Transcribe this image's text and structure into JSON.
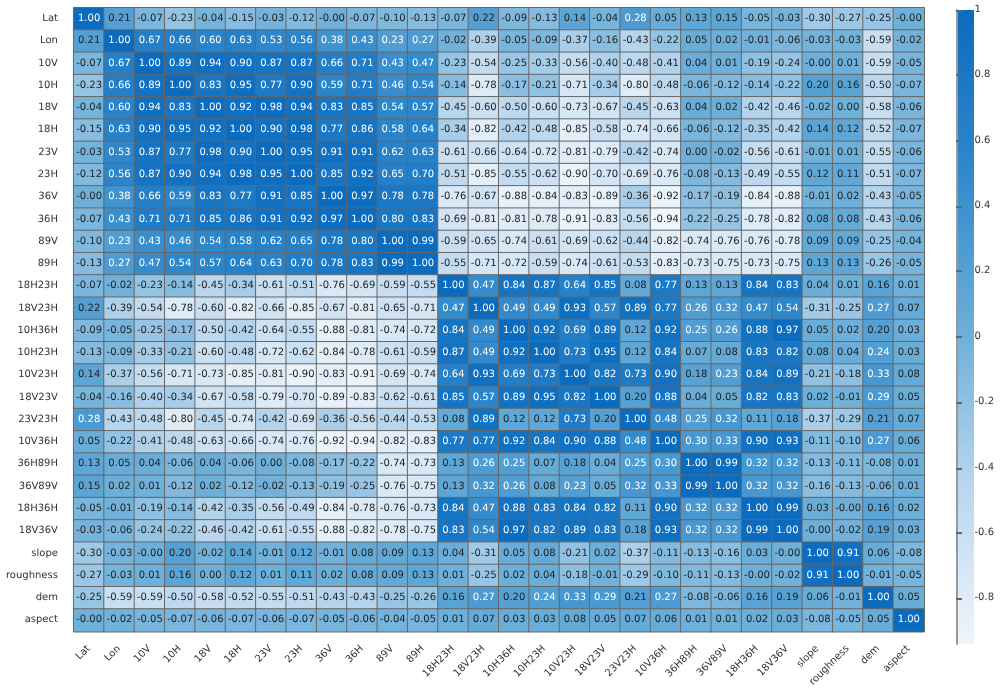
{
  "chart_data": {
    "type": "heatmap",
    "categories": [
      "Lat",
      "Lon",
      "10V",
      "10H",
      "18V",
      "18H",
      "23V",
      "23H",
      "36V",
      "36H",
      "89V",
      "89H",
      "18H23H",
      "18V23H",
      "10H36H",
      "10H23H",
      "10V23H",
      "18V23V",
      "23V23H",
      "10V36H",
      "36H89H",
      "36V89V",
      "18H36H",
      "18V36V",
      "slope",
      "roughness",
      "dem",
      "aspect"
    ],
    "y_categories": [
      "Lat",
      "Lon",
      "10V",
      "10H",
      "18V",
      "18H",
      "23V",
      "23H",
      "36V",
      "36H",
      "89V",
      "89H",
      "18H23H",
      "18V23H",
      "10H36H",
      "10H23H",
      "10V23H",
      "18V23V",
      "23V23H",
      "10V36H",
      "36H89H",
      "36V89V",
      "18H36H",
      "18V36V",
      "slope",
      "roughness",
      "dem",
      "aspect"
    ],
    "cells": [
      [
        1.0,
        0.21,
        -0.07,
        -0.23,
        -0.04,
        -0.15,
        -0.03,
        -0.12,
        -0.0,
        -0.07,
        -0.1,
        -0.13,
        -0.07,
        0.22,
        -0.09,
        -0.13,
        0.14,
        -0.04,
        0.28,
        0.05,
        0.13,
        0.15,
        -0.05,
        -0.03,
        -0.3,
        -0.27,
        -0.25,
        -0.0
      ],
      [
        0.21,
        1.0,
        0.67,
        0.66,
        0.6,
        0.63,
        0.53,
        0.56,
        0.38,
        0.43,
        0.23,
        0.27,
        -0.02,
        -0.39,
        -0.05,
        -0.09,
        -0.37,
        -0.16,
        -0.43,
        -0.22,
        0.05,
        0.02,
        -0.01,
        -0.06,
        -0.03,
        -0.03,
        -0.59,
        -0.02
      ],
      [
        -0.07,
        0.67,
        1.0,
        0.89,
        0.94,
        0.9,
        0.87,
        0.87,
        0.66,
        0.71,
        0.43,
        0.47,
        -0.23,
        -0.54,
        -0.25,
        -0.33,
        -0.56,
        -0.4,
        -0.48,
        -0.41,
        0.04,
        0.01,
        -0.19,
        -0.24,
        -0.0,
        0.01,
        -0.59,
        -0.05
      ],
      [
        -0.23,
        0.66,
        0.89,
        1.0,
        0.83,
        0.95,
        0.77,
        0.9,
        0.59,
        0.71,
        0.46,
        0.54,
        -0.14,
        -0.78,
        -0.17,
        -0.21,
        -0.71,
        -0.34,
        -0.8,
        -0.48,
        -0.06,
        -0.12,
        -0.14,
        -0.22,
        0.2,
        0.16,
        -0.5,
        -0.07
      ],
      [
        -0.04,
        0.6,
        0.94,
        0.83,
        1.0,
        0.92,
        0.98,
        0.94,
        0.83,
        0.85,
        0.54,
        0.57,
        -0.45,
        -0.6,
        -0.5,
        -0.6,
        -0.73,
        -0.67,
        -0.45,
        -0.63,
        0.04,
        0.02,
        -0.42,
        -0.46,
        -0.02,
        0.0,
        -0.58,
        -0.06
      ],
      [
        -0.15,
        0.63,
        0.9,
        0.95,
        0.92,
        1.0,
        0.9,
        0.98,
        0.77,
        0.86,
        0.58,
        0.64,
        -0.34,
        -0.82,
        -0.42,
        -0.48,
        -0.85,
        -0.58,
        -0.74,
        -0.66,
        -0.06,
        -0.12,
        -0.35,
        -0.42,
        0.14,
        0.12,
        -0.52,
        -0.07
      ],
      [
        -0.03,
        0.53,
        0.87,
        0.77,
        0.98,
        0.9,
        1.0,
        0.95,
        0.91,
        0.91,
        0.62,
        0.63,
        -0.61,
        -0.66,
        -0.64,
        -0.72,
        -0.81,
        -0.79,
        -0.42,
        -0.74,
        0.0,
        -0.02,
        -0.56,
        -0.61,
        -0.01,
        0.01,
        -0.55,
        -0.06
      ],
      [
        -0.12,
        0.56,
        0.87,
        0.9,
        0.94,
        0.98,
        0.95,
        1.0,
        0.85,
        0.92,
        0.65,
        0.7,
        -0.51,
        -0.85,
        -0.55,
        -0.62,
        -0.9,
        -0.7,
        -0.69,
        -0.76,
        -0.08,
        -0.13,
        -0.49,
        -0.55,
        0.12,
        0.11,
        -0.51,
        -0.07
      ],
      [
        -0.0,
        0.38,
        0.66,
        0.59,
        0.83,
        0.77,
        0.91,
        0.85,
        1.0,
        0.97,
        0.78,
        0.78,
        -0.76,
        -0.67,
        -0.88,
        -0.84,
        -0.83,
        -0.89,
        -0.36,
        -0.92,
        -0.17,
        -0.19,
        -0.84,
        -0.88,
        -0.01,
        0.02,
        -0.43,
        -0.05
      ],
      [
        -0.07,
        0.43,
        0.71,
        0.71,
        0.85,
        0.86,
        0.91,
        0.92,
        0.97,
        1.0,
        0.8,
        0.83,
        -0.69,
        -0.81,
        -0.81,
        -0.78,
        -0.91,
        -0.83,
        -0.56,
        -0.94,
        -0.22,
        -0.25,
        -0.78,
        -0.82,
        0.08,
        0.08,
        -0.43,
        -0.06
      ],
      [
        -0.1,
        0.23,
        0.43,
        0.46,
        0.54,
        0.58,
        0.62,
        0.65,
        0.78,
        0.8,
        1.0,
        0.99,
        -0.59,
        -0.65,
        -0.74,
        -0.61,
        -0.69,
        -0.62,
        -0.44,
        -0.82,
        -0.74,
        -0.76,
        -0.76,
        -0.78,
        0.09,
        0.09,
        -0.25,
        -0.04
      ],
      [
        -0.13,
        0.27,
        0.47,
        0.54,
        0.57,
        0.64,
        0.63,
        0.7,
        0.78,
        0.83,
        0.99,
        1.0,
        -0.55,
        -0.71,
        -0.72,
        -0.59,
        -0.74,
        -0.61,
        -0.53,
        -0.83,
        -0.73,
        -0.75,
        -0.73,
        -0.75,
        0.13,
        0.13,
        -0.26,
        -0.05
      ],
      [
        -0.07,
        -0.02,
        -0.23,
        -0.14,
        -0.45,
        -0.34,
        -0.61,
        -0.51,
        -0.76,
        -0.69,
        -0.59,
        -0.55,
        1.0,
        0.47,
        0.84,
        0.87,
        0.64,
        0.85,
        0.08,
        0.77,
        0.13,
        0.13,
        0.84,
        0.83,
        0.04,
        0.01,
        0.16,
        0.01
      ],
      [
        0.22,
        -0.39,
        -0.54,
        -0.78,
        -0.6,
        -0.82,
        -0.66,
        -0.85,
        -0.67,
        -0.81,
        -0.65,
        -0.71,
        0.47,
        1.0,
        0.49,
        0.49,
        0.93,
        0.57,
        0.89,
        0.77,
        0.26,
        0.32,
        0.47,
        0.54,
        -0.31,
        -0.25,
        0.27,
        0.07
      ],
      [
        -0.09,
        -0.05,
        -0.25,
        -0.17,
        -0.5,
        -0.42,
        -0.64,
        -0.55,
        -0.88,
        -0.81,
        -0.74,
        -0.72,
        0.84,
        0.49,
        1.0,
        0.92,
        0.69,
        0.89,
        0.12,
        0.92,
        0.25,
        0.26,
        0.88,
        0.97,
        0.05,
        0.02,
        0.2,
        0.03
      ],
      [
        -0.13,
        -0.09,
        -0.33,
        -0.21,
        -0.6,
        -0.48,
        -0.72,
        -0.62,
        -0.84,
        -0.78,
        -0.61,
        -0.59,
        0.87,
        0.49,
        0.92,
        1.0,
        0.73,
        0.95,
        0.12,
        0.84,
        0.07,
        0.08,
        0.83,
        0.82,
        0.08,
        0.04,
        0.24,
        0.03
      ],
      [
        0.14,
        -0.37,
        -0.56,
        -0.71,
        -0.73,
        -0.85,
        -0.81,
        -0.9,
        -0.83,
        -0.91,
        -0.69,
        -0.74,
        0.64,
        0.93,
        0.69,
        0.73,
        1.0,
        0.82,
        0.73,
        0.9,
        0.18,
        0.23,
        0.84,
        0.89,
        -0.21,
        -0.18,
        0.33,
        0.08
      ],
      [
        -0.04,
        -0.16,
        -0.4,
        -0.34,
        -0.67,
        -0.58,
        -0.79,
        -0.7,
        -0.89,
        -0.83,
        -0.62,
        -0.61,
        0.85,
        0.57,
        0.89,
        0.95,
        0.82,
        1.0,
        0.2,
        0.88,
        0.04,
        0.05,
        0.82,
        0.83,
        0.02,
        -0.01,
        0.29,
        0.05
      ],
      [
        0.28,
        -0.43,
        -0.48,
        -0.8,
        -0.45,
        -0.74,
        -0.42,
        -0.69,
        -0.36,
        -0.56,
        -0.44,
        -0.53,
        0.08,
        0.89,
        0.12,
        0.12,
        0.73,
        0.2,
        1.0,
        0.48,
        0.25,
        0.32,
        0.11,
        0.18,
        -0.37,
        -0.29,
        0.21,
        0.07
      ],
      [
        0.05,
        -0.22,
        -0.41,
        -0.48,
        -0.63,
        -0.66,
        -0.74,
        -0.76,
        -0.92,
        -0.94,
        -0.82,
        -0.83,
        0.77,
        0.77,
        0.92,
        0.84,
        0.9,
        0.88,
        0.48,
        1.0,
        0.3,
        0.33,
        0.9,
        0.93,
        -0.11,
        -0.1,
        0.27,
        0.06
      ],
      [
        0.13,
        0.05,
        0.04,
        -0.06,
        0.04,
        -0.06,
        0.0,
        -0.08,
        -0.17,
        -0.22,
        -0.74,
        -0.73,
        0.13,
        0.26,
        0.25,
        0.07,
        0.18,
        0.04,
        0.25,
        0.3,
        1.0,
        0.99,
        0.32,
        0.32,
        -0.13,
        -0.11,
        -0.08,
        0.01
      ],
      [
        0.15,
        0.02,
        0.01,
        -0.12,
        0.02,
        -0.12,
        -0.02,
        -0.13,
        -0.19,
        -0.25,
        -0.76,
        -0.75,
        0.13,
        0.32,
        0.26,
        0.08,
        0.23,
        0.05,
        0.32,
        0.33,
        0.99,
        1.0,
        0.32,
        0.32,
        -0.16,
        -0.13,
        -0.06,
        0.01
      ],
      [
        -0.05,
        -0.01,
        -0.19,
        -0.14,
        -0.42,
        -0.35,
        -0.56,
        -0.49,
        -0.84,
        -0.78,
        -0.76,
        -0.73,
        0.84,
        0.47,
        0.88,
        0.83,
        0.84,
        0.82,
        0.11,
        0.9,
        0.32,
        0.32,
        1.0,
        0.99,
        0.03,
        -0.0,
        0.16,
        0.02
      ],
      [
        -0.03,
        -0.06,
        -0.24,
        -0.22,
        -0.46,
        -0.42,
        -0.61,
        -0.55,
        -0.88,
        -0.82,
        -0.78,
        -0.75,
        0.83,
        0.54,
        0.97,
        0.82,
        0.89,
        0.83,
        0.18,
        0.93,
        0.32,
        0.32,
        0.99,
        1.0,
        -0.0,
        -0.02,
        0.19,
        0.03
      ],
      [
        -0.3,
        -0.03,
        -0.0,
        0.2,
        -0.02,
        0.14,
        -0.01,
        0.12,
        -0.01,
        0.08,
        0.09,
        0.13,
        0.04,
        -0.31,
        0.05,
        0.08,
        -0.21,
        0.02,
        -0.37,
        -0.11,
        -0.13,
        -0.16,
        0.03,
        -0.0,
        1.0,
        0.91,
        0.06,
        -0.08
      ],
      [
        -0.27,
        -0.03,
        0.01,
        0.16,
        0.0,
        0.12,
        0.01,
        0.11,
        0.02,
        0.08,
        0.09,
        0.13,
        0.01,
        -0.25,
        0.02,
        0.04,
        -0.18,
        -0.01,
        -0.29,
        -0.1,
        -0.11,
        -0.13,
        -0.0,
        -0.02,
        0.91,
        1.0,
        -0.01,
        -0.05
      ],
      [
        -0.25,
        -0.59,
        -0.59,
        -0.5,
        -0.58,
        -0.52,
        -0.55,
        -0.51,
        -0.43,
        -0.43,
        -0.25,
        -0.26,
        0.16,
        0.27,
        0.2,
        0.24,
        0.33,
        0.29,
        0.21,
        0.27,
        -0.08,
        -0.06,
        0.16,
        0.19,
        0.06,
        -0.01,
        1.0,
        0.05
      ],
      [
        -0.0,
        -0.02,
        -0.05,
        -0.07,
        -0.06,
        -0.07,
        -0.06,
        -0.07,
        -0.05,
        -0.06,
        -0.04,
        -0.05,
        0.01,
        0.07,
        0.03,
        0.03,
        0.08,
        0.05,
        0.07,
        0.06,
        0.01,
        0.01,
        0.02,
        0.03,
        -0.08,
        -0.05,
        0.05,
        1.0
      ]
    ],
    "cell_labels": [
      [
        "1.00",
        "0.21",
        "-0.07",
        "-0.23",
        "-0.04",
        "-0.15",
        "-0.03",
        "-0.12",
        "-0.00",
        "-0.07",
        "-0.10",
        "-0.13",
        "-0.07",
        "0.22",
        "-0.09",
        "-0.13",
        "0.14",
        "-0.04",
        "0.28",
        "0.05",
        "0.13",
        "0.15",
        "-0.05",
        "-0.03",
        "-0.30",
        "-0.27",
        "-0.25",
        "-0.00"
      ],
      [
        "0.21",
        "1.00",
        "0.67",
        "0.66",
        "0.60",
        "0.63",
        "0.53",
        "0.56",
        "0.38",
        "0.43",
        "0.23",
        "0.27",
        "-0.02",
        "-0.39",
        "-0.05",
        "-0.09",
        "-0.37",
        "-0.16",
        "-0.43",
        "-0.22",
        "0.05",
        "0.02",
        "-0.01",
        "-0.06",
        "-0.03",
        "-0.03",
        "-0.59",
        "-0.02"
      ],
      [
        "-0.07",
        "0.67",
        "1.00",
        "0.89",
        "0.94",
        "0.90",
        "0.87",
        "0.87",
        "0.66",
        "0.71",
        "0.43",
        "0.47",
        "-0.23",
        "-0.54",
        "-0.25",
        "-0.33",
        "-0.56",
        "-0.40",
        "-0.48",
        "-0.41",
        "0.04",
        "0.01",
        "-0.19",
        "-0.24",
        "-0.00",
        "0.01",
        "-0.59",
        "-0.05"
      ],
      [
        "-0.23",
        "0.66",
        "0.89",
        "1.00",
        "0.83",
        "0.95",
        "0.77",
        "0.90",
        "0.59",
        "0.71",
        "0.46",
        "0.54",
        "-0.14",
        "-0.78",
        "-0.17",
        "-0.21",
        "-0.71",
        "-0.34",
        "-0.80",
        "-0.48",
        "-0.06",
        "-0.12",
        "-0.14",
        "-0.22",
        "0.20",
        "0.16",
        "-0.50",
        "-0.07"
      ],
      [
        "-0.04",
        "0.60",
        "0.94",
        "0.83",
        "1.00",
        "0.92",
        "0.98",
        "0.94",
        "0.83",
        "0.85",
        "0.54",
        "0.57",
        "-0.45",
        "-0.60",
        "-0.50",
        "-0.60",
        "-0.73",
        "-0.67",
        "-0.45",
        "-0.63",
        "0.04",
        "0.02",
        "-0.42",
        "-0.46",
        "-0.02",
        "0.00",
        "-0.58",
        "-0.06"
      ],
      [
        "-0.15",
        "0.63",
        "0.90",
        "0.95",
        "0.92",
        "1.00",
        "0.90",
        "0.98",
        "0.77",
        "0.86",
        "0.58",
        "0.64",
        "-0.34",
        "-0.82",
        "-0.42",
        "-0.48",
        "-0.85",
        "-0.58",
        "-0.74",
        "-0.66",
        "-0.06",
        "-0.12",
        "-0.35",
        "-0.42",
        "0.14",
        "0.12",
        "-0.52",
        "-0.07"
      ],
      [
        "-0.03",
        "0.53",
        "0.87",
        "0.77",
        "0.98",
        "0.90",
        "1.00",
        "0.95",
        "0.91",
        "0.91",
        "0.62",
        "0.63",
        "-0.61",
        "-0.66",
        "-0.64",
        "-0.72",
        "-0.81",
        "-0.79",
        "-0.42",
        "-0.74",
        "0.00",
        "-0.02",
        "-0.56",
        "-0.61",
        "-0.01",
        "0.01",
        "-0.55",
        "-0.06"
      ],
      [
        "-0.12",
        "0.56",
        "0.87",
        "0.90",
        "0.94",
        "0.98",
        "0.95",
        "1.00",
        "0.85",
        "0.92",
        "0.65",
        "0.70",
        "-0.51",
        "-0.85",
        "-0.55",
        "-0.62",
        "-0.90",
        "-0.70",
        "-0.69",
        "-0.76",
        "-0.08",
        "-0.13",
        "-0.49",
        "-0.55",
        "0.12",
        "0.11",
        "-0.51",
        "-0.07"
      ],
      [
        "-0.00",
        "0.38",
        "0.66",
        "0.59",
        "0.83",
        "0.77",
        "0.91",
        "0.85",
        "1.00",
        "0.97",
        "0.78",
        "0.78",
        "-0.76",
        "-0.67",
        "-0.88",
        "-0.84",
        "-0.83",
        "-0.89",
        "-0.36",
        "-0.92",
        "-0.17",
        "-0.19",
        "-0.84",
        "-0.88",
        "-0.01",
        "0.02",
        "-0.43",
        "-0.05"
      ],
      [
        "-0.07",
        "0.43",
        "0.71",
        "0.71",
        "0.85",
        "0.86",
        "0.91",
        "0.92",
        "0.97",
        "1.00",
        "0.80",
        "0.83",
        "-0.69",
        "-0.81",
        "-0.81",
        "-0.78",
        "-0.91",
        "-0.83",
        "-0.56",
        "-0.94",
        "-0.22",
        "-0.25",
        "-0.78",
        "-0.82",
        "0.08",
        "0.08",
        "-0.43",
        "-0.06"
      ],
      [
        "-0.10",
        "0.23",
        "0.43",
        "0.46",
        "0.54",
        "0.58",
        "0.62",
        "0.65",
        "0.78",
        "0.80",
        "1.00",
        "0.99",
        "-0.59",
        "-0.65",
        "-0.74",
        "-0.61",
        "-0.69",
        "-0.62",
        "-0.44",
        "-0.82",
        "-0.74",
        "-0.76",
        "-0.76",
        "-0.78",
        "0.09",
        "0.09",
        "-0.25",
        "-0.04"
      ],
      [
        "-0.13",
        "0.27",
        "0.47",
        "0.54",
        "0.57",
        "0.64",
        "0.63",
        "0.70",
        "0.78",
        "0.83",
        "0.99",
        "1.00",
        "-0.55",
        "-0.71",
        "-0.72",
        "-0.59",
        "-0.74",
        "-0.61",
        "-0.53",
        "-0.83",
        "-0.73",
        "-0.75",
        "-0.73",
        "-0.75",
        "0.13",
        "0.13",
        "-0.26",
        "-0.05"
      ],
      [
        "-0.07",
        "-0.02",
        "-0.23",
        "-0.14",
        "-0.45",
        "-0.34",
        "-0.61",
        "-0.51",
        "-0.76",
        "-0.69",
        "-0.59",
        "-0.55",
        "1.00",
        "0.47",
        "0.84",
        "0.87",
        "0.64",
        "0.85",
        "0.08",
        "0.77",
        "0.13",
        "0.13",
        "0.84",
        "0.83",
        "0.04",
        "0.01",
        "0.16",
        "0.01"
      ],
      [
        "0.22",
        "-0.39",
        "-0.54",
        "-0.78",
        "-0.60",
        "-0.82",
        "-0.66",
        "-0.85",
        "-0.67",
        "-0.81",
        "-0.65",
        "-0.71",
        "0.47",
        "1.00",
        "0.49",
        "0.49",
        "0.93",
        "0.57",
        "0.89",
        "0.77",
        "0.26",
        "0.32",
        "0.47",
        "0.54",
        "-0.31",
        "-0.25",
        "0.27",
        "0.07"
      ],
      [
        "-0.09",
        "-0.05",
        "-0.25",
        "-0.17",
        "-0.50",
        "-0.42",
        "-0.64",
        "-0.55",
        "-0.88",
        "-0.81",
        "-0.74",
        "-0.72",
        "0.84",
        "0.49",
        "1.00",
        "0.92",
        "0.69",
        "0.89",
        "0.12",
        "0.92",
        "0.25",
        "0.26",
        "0.88",
        "0.97",
        "0.05",
        "0.02",
        "0.20",
        "0.03"
      ],
      [
        "-0.13",
        "-0.09",
        "-0.33",
        "-0.21",
        "-0.60",
        "-0.48",
        "-0.72",
        "-0.62",
        "-0.84",
        "-0.78",
        "-0.61",
        "-0.59",
        "0.87",
        "0.49",
        "0.92",
        "1.00",
        "0.73",
        "0.95",
        "0.12",
        "0.84",
        "0.07",
        "0.08",
        "0.83",
        "0.82",
        "0.08",
        "0.04",
        "0.24",
        "0.03"
      ],
      [
        "0.14",
        "-0.37",
        "-0.56",
        "-0.71",
        "-0.73",
        "-0.85",
        "-0.81",
        "-0.90",
        "-0.83",
        "-0.91",
        "-0.69",
        "-0.74",
        "0.64",
        "0.93",
        "0.69",
        "0.73",
        "1.00",
        "0.82",
        "0.73",
        "0.90",
        "0.18",
        "0.23",
        "0.84",
        "0.89",
        "-0.21",
        "-0.18",
        "0.33",
        "0.08"
      ],
      [
        "-0.04",
        "-0.16",
        "-0.40",
        "-0.34",
        "-0.67",
        "-0.58",
        "-0.79",
        "-0.70",
        "-0.89",
        "-0.83",
        "-0.62",
        "-0.61",
        "0.85",
        "0.57",
        "0.89",
        "0.95",
        "0.82",
        "1.00",
        "0.20",
        "0.88",
        "0.04",
        "0.05",
        "0.82",
        "0.83",
        "0.02",
        "-0.01",
        "0.29",
        "0.05"
      ],
      [
        "0.28",
        "-0.43",
        "-0.48",
        "-0.80",
        "-0.45",
        "-0.74",
        "-0.42",
        "-0.69",
        "-0.36",
        "-0.56",
        "-0.44",
        "-0.53",
        "0.08",
        "0.89",
        "0.12",
        "0.12",
        "0.73",
        "0.20",
        "1.00",
        "0.48",
        "0.25",
        "0.32",
        "0.11",
        "0.18",
        "-0.37",
        "-0.29",
        "0.21",
        "0.07"
      ],
      [
        "0.05",
        "-0.22",
        "-0.41",
        "-0.48",
        "-0.63",
        "-0.66",
        "-0.74",
        "-0.76",
        "-0.92",
        "-0.94",
        "-0.82",
        "-0.83",
        "0.77",
        "0.77",
        "0.92",
        "0.84",
        "0.90",
        "0.88",
        "0.48",
        "1.00",
        "0.30",
        "0.33",
        "0.90",
        "0.93",
        "-0.11",
        "-0.10",
        "0.27",
        "0.06"
      ],
      [
        "0.13",
        "0.05",
        "0.04",
        "-0.06",
        "0.04",
        "-0.06",
        "0.00",
        "-0.08",
        "-0.17",
        "-0.22",
        "-0.74",
        "-0.73",
        "0.13",
        "0.26",
        "0.25",
        "0.07",
        "0.18",
        "0.04",
        "0.25",
        "0.30",
        "1.00",
        "0.99",
        "0.32",
        "0.32",
        "-0.13",
        "-0.11",
        "-0.08",
        "0.01"
      ],
      [
        "0.15",
        "0.02",
        "0.01",
        "-0.12",
        "0.02",
        "-0.12",
        "-0.02",
        "-0.13",
        "-0.19",
        "-0.25",
        "-0.76",
        "-0.75",
        "0.13",
        "0.32",
        "0.26",
        "0.08",
        "0.23",
        "0.05",
        "0.32",
        "0.33",
        "0.99",
        "1.00",
        "0.32",
        "0.32",
        "-0.16",
        "-0.13",
        "-0.06",
        "0.01"
      ],
      [
        "-0.05",
        "-0.01",
        "-0.19",
        "-0.14",
        "-0.42",
        "-0.35",
        "-0.56",
        "-0.49",
        "-0.84",
        "-0.78",
        "-0.76",
        "-0.73",
        "0.84",
        "0.47",
        "0.88",
        "0.83",
        "0.84",
        "0.82",
        "0.11",
        "0.90",
        "0.32",
        "0.32",
        "1.00",
        "0.99",
        "0.03",
        "-0.00",
        "0.16",
        "0.02"
      ],
      [
        "-0.03",
        "-0.06",
        "-0.24",
        "-0.22",
        "-0.46",
        "-0.42",
        "-0.61",
        "-0.55",
        "-0.88",
        "-0.82",
        "-0.78",
        "-0.75",
        "0.83",
        "0.54",
        "0.97",
        "0.82",
        "0.89",
        "0.83",
        "0.18",
        "0.93",
        "0.32",
        "0.32",
        "0.99",
        "1.00",
        "-0.00",
        "-0.02",
        "0.19",
        "0.03"
      ],
      [
        "-0.30",
        "-0.03",
        "-0.00",
        "0.20",
        "-0.02",
        "0.14",
        "-0.01",
        "0.12",
        "-0.01",
        "0.08",
        "0.09",
        "0.13",
        "0.04",
        "-0.31",
        "0.05",
        "0.08",
        "-0.21",
        "0.02",
        "-0.37",
        "-0.11",
        "-0.13",
        "-0.16",
        "0.03",
        "-0.00",
        "1.00",
        "0.91",
        "0.06",
        "-0.08"
      ],
      [
        "-0.27",
        "-0.03",
        "0.01",
        "0.16",
        "0.00",
        "0.12",
        "0.01",
        "0.11",
        "0.02",
        "0.08",
        "0.09",
        "0.13",
        "0.01",
        "-0.25",
        "0.02",
        "0.04",
        "-0.18",
        "-0.01",
        "-0.29",
        "-0.10",
        "-0.11",
        "-0.13",
        "-0.00",
        "-0.02",
        "0.91",
        "1.00",
        "-0.01",
        "-0.05"
      ],
      [
        "-0.25",
        "-0.59",
        "-0.59",
        "-0.50",
        "-0.58",
        "-0.52",
        "-0.55",
        "-0.51",
        "-0.43",
        "-0.43",
        "-0.25",
        "-0.26",
        "0.16",
        "0.27",
        "0.20",
        "0.24",
        "0.33",
        "0.29",
        "0.21",
        "0.27",
        "-0.08",
        "-0.06",
        "0.16",
        "0.19",
        "0.06",
        "-0.01",
        "1.00",
        "0.05"
      ],
      [
        "-0.00",
        "-0.02",
        "-0.05",
        "-0.07",
        "-0.06",
        "-0.07",
        "-0.06",
        "-0.07",
        "-0.05",
        "-0.06",
        "-0.04",
        "-0.05",
        "0.01",
        "0.07",
        "0.03",
        "0.03",
        "0.08",
        "0.05",
        "0.07",
        "0.06",
        "0.01",
        "0.01",
        "0.02",
        "0.03",
        "-0.08",
        "-0.05",
        "0.05",
        "1.00"
      ]
    ],
    "clim": [
      -0.94,
      1
    ],
    "cticks": [
      -0.8,
      -0.6,
      -0.4,
      -0.2,
      0,
      0.2,
      0.4,
      0.6,
      0.8,
      1
    ]
  }
}
